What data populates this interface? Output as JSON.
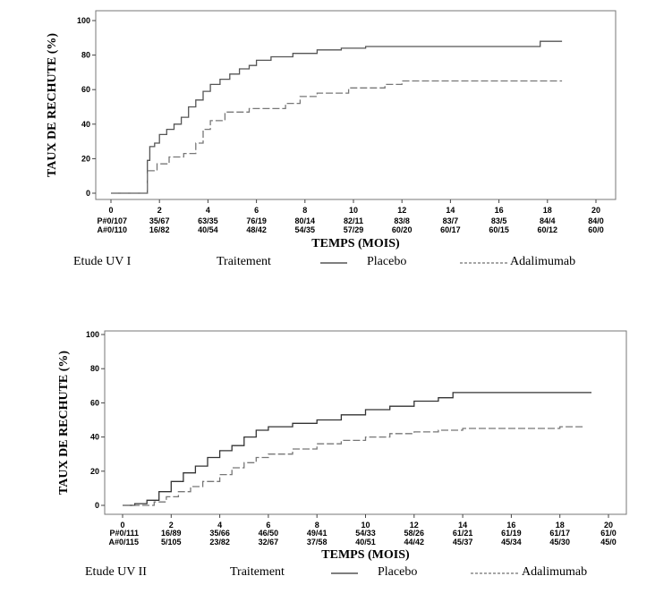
{
  "chart_data": [
    {
      "type": "line",
      "study_label": "Etude UV I",
      "treatment_label": "Traitement",
      "xlabel": "TEMPS (MOIS)",
      "ylabel": "TAUX DE RECHUTE (%)",
      "xlim": [
        0,
        20
      ],
      "ylim": [
        0,
        100
      ],
      "xticks": [
        0,
        2,
        4,
        6,
        8,
        10,
        12,
        14,
        16,
        18,
        20
      ],
      "yticks": [
        0,
        20,
        40,
        60,
        80,
        100
      ],
      "grid": false,
      "series": [
        {
          "name": "Placebo",
          "color": "#555555",
          "style": "solid",
          "x": [
            0,
            1.4,
            1.5,
            1.6,
            1.8,
            2.0,
            2.3,
            2.6,
            2.9,
            3.2,
            3.5,
            3.8,
            4.1,
            4.5,
            4.9,
            5.3,
            5.7,
            6.0,
            6.6,
            7.5,
            8.5,
            9.5,
            10.5,
            12.0,
            14.0,
            16.0,
            17.7,
            18.6
          ],
          "y": [
            0,
            0,
            19,
            27,
            29,
            34,
            37,
            40,
            44,
            50,
            54,
            59,
            63,
            66,
            69,
            72,
            74,
            77,
            79,
            81,
            83,
            84,
            85,
            85,
            85,
            85,
            88,
            88
          ]
        },
        {
          "name": "Adalimumab",
          "color": "#777777",
          "style": "dashed",
          "x": [
            0,
            1.4,
            1.5,
            1.9,
            2.4,
            3.0,
            3.5,
            3.8,
            4.1,
            4.7,
            5.7,
            7.2,
            7.8,
            8.5,
            9.8,
            11.3,
            12.0,
            14.0,
            16.0,
            18.0,
            18.6
          ],
          "y": [
            0,
            0,
            13,
            17,
            21,
            23,
            29,
            37,
            42,
            47,
            49,
            52,
            56,
            58,
            61,
            63,
            65,
            65,
            65,
            65,
            65
          ]
        }
      ],
      "risk_table": {
        "times": [
          0,
          2,
          4,
          6,
          8,
          10,
          12,
          14,
          16,
          18,
          20
        ],
        "rows": [
          {
            "label": "P#0/107",
            "values": [
              "35/67",
              "63/35",
              "76/19",
              "80/14",
              "82/11",
              "83/8",
              "83/7",
              "83/5",
              "84/4",
              "84/0"
            ]
          },
          {
            "label": "A#0/110",
            "values": [
              "16/82",
              "40/54",
              "48/42",
              "54/35",
              "57/29",
              "60/20",
              "60/17",
              "60/15",
              "60/12",
              "60/0"
            ]
          }
        ]
      }
    },
    {
      "type": "line",
      "study_label": "Etude UV II",
      "treatment_label": "Traitement",
      "xlabel": "TEMPS (MOIS)",
      "ylabel": "TAUX DE RECHUTE (%)",
      "xlim": [
        0,
        20
      ],
      "ylim": [
        0,
        100
      ],
      "xticks": [
        0,
        2,
        4,
        6,
        8,
        10,
        12,
        14,
        16,
        18,
        20
      ],
      "yticks": [
        0,
        20,
        40,
        60,
        80,
        100
      ],
      "grid": false,
      "series": [
        {
          "name": "Placebo",
          "color": "#333333",
          "style": "solid",
          "x": [
            0,
            0.5,
            1.0,
            1.5,
            2.0,
            2.5,
            3.0,
            3.5,
            4.0,
            4.5,
            5.0,
            5.5,
            6.0,
            7.0,
            8.0,
            9.0,
            10.0,
            11.0,
            12.0,
            13.0,
            13.6,
            14.0,
            16.0,
            18.0,
            19.3
          ],
          "y": [
            0,
            1,
            3,
            8,
            14,
            19,
            23,
            28,
            32,
            35,
            40,
            44,
            46,
            48,
            50,
            53,
            56,
            58,
            61,
            63,
            66,
            66,
            66,
            66,
            66
          ]
        },
        {
          "name": "Adalimumab",
          "color": "#777777",
          "style": "dashed",
          "x": [
            0,
            0.8,
            1.3,
            1.8,
            2.3,
            2.8,
            3.3,
            4.0,
            4.5,
            5.0,
            5.5,
            6.0,
            7.0,
            8.0,
            9.0,
            10.0,
            11.0,
            12.0,
            13.0,
            14.0,
            16.0,
            18.0,
            19.0
          ],
          "y": [
            0,
            0,
            2,
            5,
            8,
            11,
            14,
            18,
            22,
            25,
            28,
            30,
            33,
            36,
            38,
            40,
            42,
            43,
            44,
            45,
            45,
            46,
            46
          ]
        }
      ],
      "risk_table": {
        "times": [
          0,
          2,
          4,
          6,
          8,
          10,
          12,
          14,
          16,
          18,
          20
        ],
        "rows": [
          {
            "label": "P#0/111",
            "values": [
              "16/89",
              "35/66",
              "46/50",
              "49/41",
              "54/33",
              "58/26",
              "61/21",
              "61/19",
              "61/17",
              "61/0"
            ]
          },
          {
            "label": "A#0/115",
            "values": [
              "5/105",
              "23/82",
              "32/67",
              "37/58",
              "40/51",
              "44/42",
              "45/37",
              "45/34",
              "45/30",
              "45/0"
            ]
          }
        ]
      }
    }
  ]
}
